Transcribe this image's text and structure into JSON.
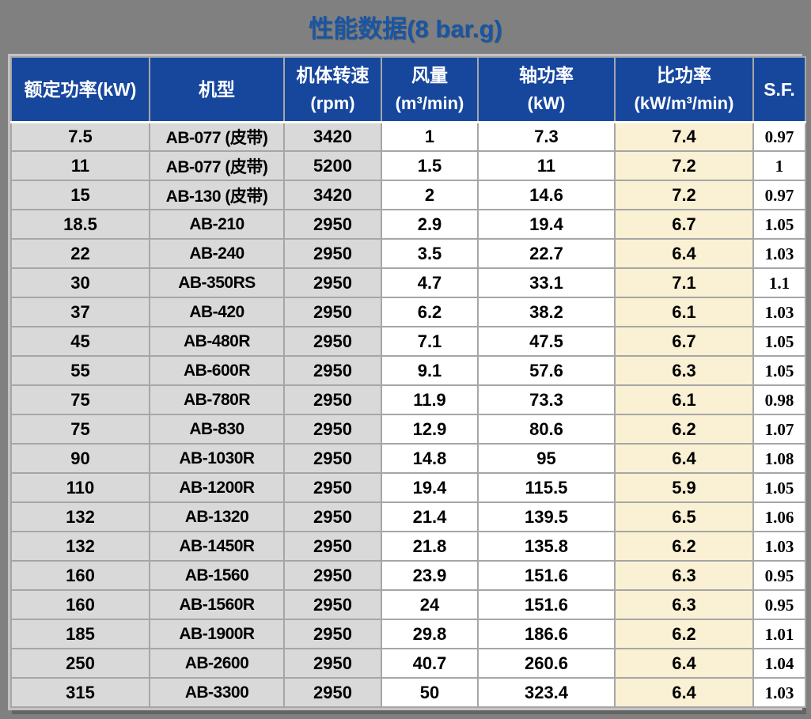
{
  "title": "性能数据(8 bar.g)",
  "colors": {
    "page-background": "#808080",
    "title-blue": "#1856A5",
    "header-blue": "#17479D",
    "cell-gray": "#D9D9D9",
    "cell-white": "#FFFFFF",
    "cell-cream": "#FAF0D3",
    "grid-line": "#A6A6A6",
    "outer-border": "#C3C3C3",
    "header-text": "#FFFFFF",
    "text-black": "#000000"
  },
  "table": {
    "headers": [
      {
        "line1": "额定功率(kW)",
        "line2": ""
      },
      {
        "line1": "机型",
        "line2": ""
      },
      {
        "line1": "机体转速",
        "line2": "(rpm)"
      },
      {
        "line1": "风量",
        "line2": "(m³/min)"
      },
      {
        "line1": "轴功率",
        "line2": "(kW)"
      },
      {
        "line1": "比功率",
        "line2": "(kW/m³/min)"
      },
      {
        "line1": "S.F.",
        "line2": ""
      }
    ]
  },
  "chart_data": {
    "type": "table",
    "title": "性能数据(8 bar.g)",
    "columns": [
      "额定功率(kW)",
      "机型",
      "机体转速(rpm)",
      "风量(m³/min)",
      "轴功率(kW)",
      "比功率(kW/m³/min)",
      "S.F."
    ],
    "rows": [
      [
        "7.5",
        "AB-077 (皮带)",
        "3420",
        "1",
        "7.3",
        "7.4",
        "0.97"
      ],
      [
        "11",
        "AB-077 (皮带)",
        "5200",
        "1.5",
        "11",
        "7.2",
        "1"
      ],
      [
        "15",
        "AB-130 (皮带)",
        "3420",
        "2",
        "14.6",
        "7.2",
        "0.97"
      ],
      [
        "18.5",
        "AB-210",
        "2950",
        "2.9",
        "19.4",
        "6.7",
        "1.05"
      ],
      [
        "22",
        "AB-240",
        "2950",
        "3.5",
        "22.7",
        "6.4",
        "1.03"
      ],
      [
        "30",
        "AB-350RS",
        "2950",
        "4.7",
        "33.1",
        "7.1",
        "1.1"
      ],
      [
        "37",
        "AB-420",
        "2950",
        "6.2",
        "38.2",
        "6.1",
        "1.03"
      ],
      [
        "45",
        "AB-480R",
        "2950",
        "7.1",
        "47.5",
        "6.7",
        "1.05"
      ],
      [
        "55",
        "AB-600R",
        "2950",
        "9.1",
        "57.6",
        "6.3",
        "1.05"
      ],
      [
        "75",
        "AB-780R",
        "2950",
        "11.9",
        "73.3",
        "6.1",
        "0.98"
      ],
      [
        "75",
        "AB-830",
        "2950",
        "12.9",
        "80.6",
        "6.2",
        "1.07"
      ],
      [
        "90",
        "AB-1030R",
        "2950",
        "14.8",
        "95",
        "6.4",
        "1.08"
      ],
      [
        "110",
        "AB-1200R",
        "2950",
        "19.4",
        "115.5",
        "5.9",
        "1.05"
      ],
      [
        "132",
        "AB-1320",
        "2950",
        "21.4",
        "139.5",
        "6.5",
        "1.06"
      ],
      [
        "132",
        "AB-1450R",
        "2950",
        "21.8",
        "135.8",
        "6.2",
        "1.03"
      ],
      [
        "160",
        "AB-1560",
        "2950",
        "23.9",
        "151.6",
        "6.3",
        "0.95"
      ],
      [
        "160",
        "AB-1560R",
        "2950",
        "24",
        "151.6",
        "6.3",
        "0.95"
      ],
      [
        "185",
        "AB-1900R",
        "2950",
        "29.8",
        "186.6",
        "6.2",
        "1.01"
      ],
      [
        "250",
        "AB-2600",
        "2950",
        "40.7",
        "260.6",
        "6.4",
        "1.04"
      ],
      [
        "315",
        "AB-3300",
        "2950",
        "50",
        "323.4",
        "6.4",
        "1.03"
      ]
    ]
  }
}
